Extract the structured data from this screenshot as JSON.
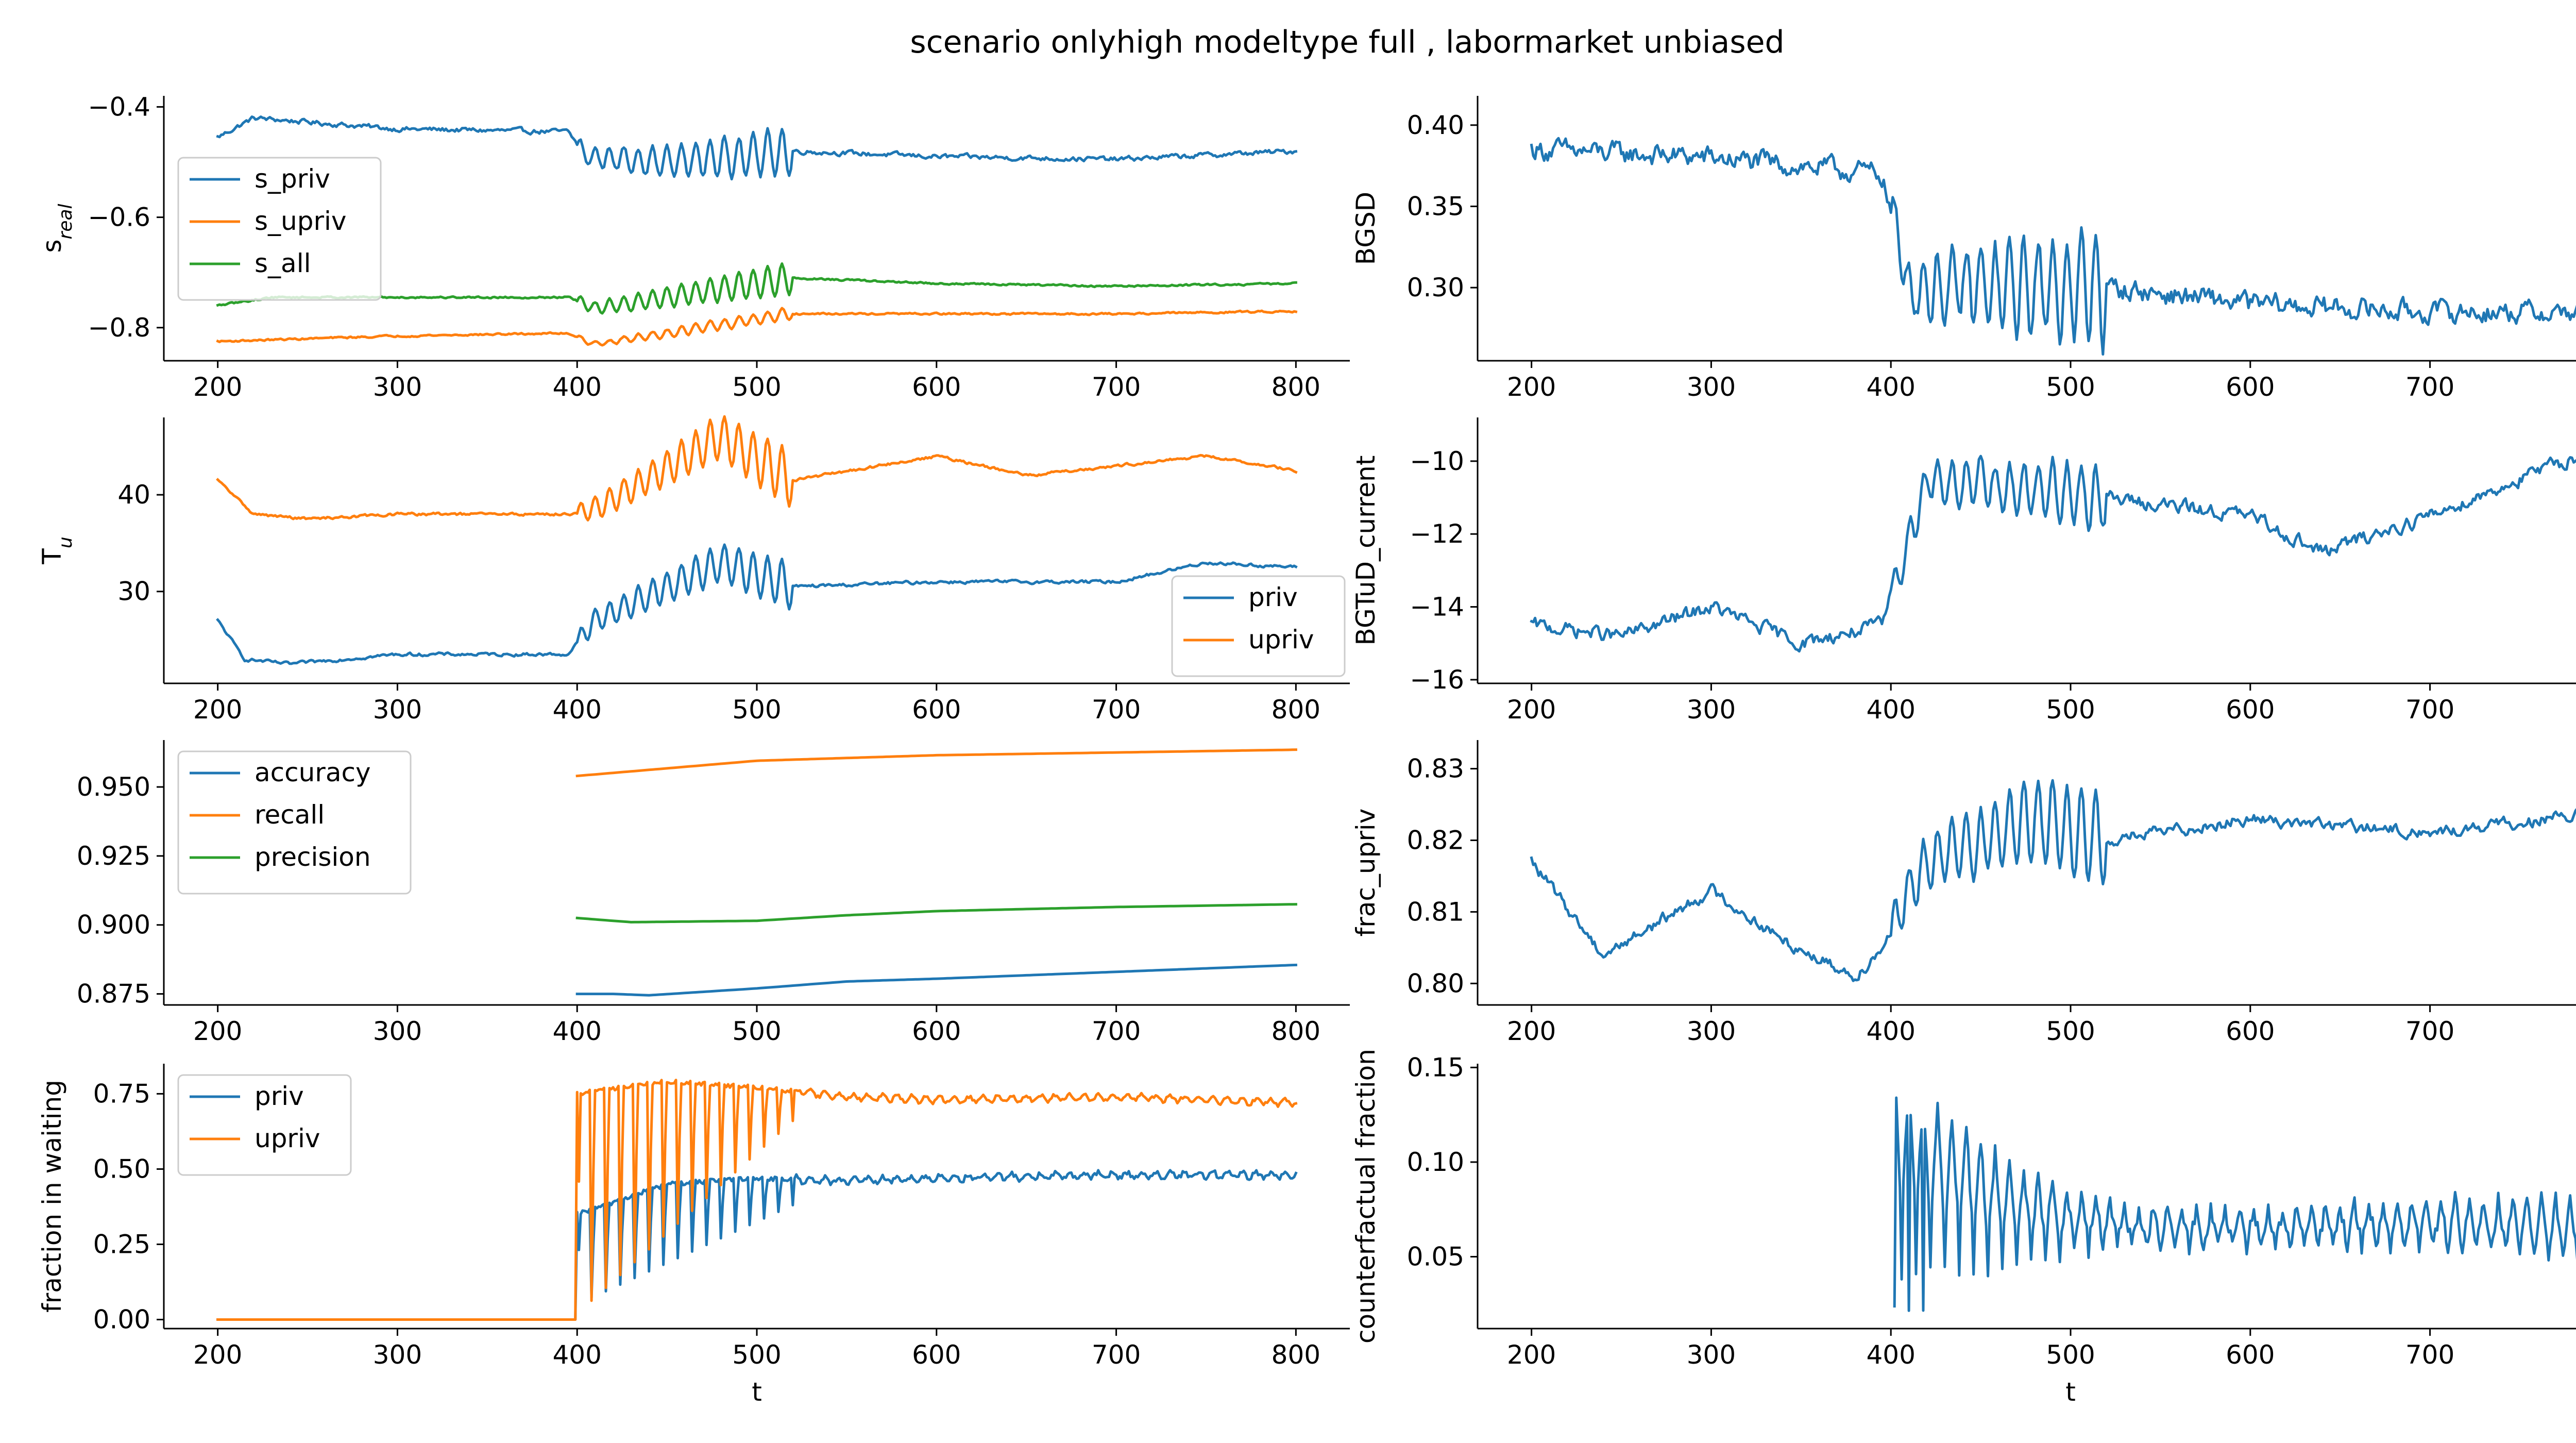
{
  "figure": {
    "title": "scenario onlyhigh modeltype full , labormarket unbiased",
    "colors": {
      "blue": "#1f77b4",
      "orange": "#ff7f0e",
      "green": "#2ca02c"
    }
  },
  "chart_data": [
    {
      "id": "s_real",
      "type": "line",
      "ylabel": "s",
      "ylabel_sub": "real",
      "xlabel": "",
      "xlim": [
        170,
        830
      ],
      "ylim": [
        -0.86,
        -0.38
      ],
      "xticks": [
        200,
        300,
        400,
        500,
        600,
        700,
        800
      ],
      "yticks": [
        -0.8,
        -0.6,
        -0.4
      ],
      "ytick_labels": [
        "−0.8",
        "−0.6",
        "−0.4"
      ],
      "legend": {
        "position": "center-left",
        "entries": [
          "s_priv",
          "s_upriv",
          "s_all"
        ]
      },
      "series": [
        {
          "name": "s_priv",
          "color": "blue",
          "style": "noisy",
          "amp": 0.008,
          "osc_start": 400,
          "osc_end": 520,
          "osc_amp": [
            0.015,
            0.045
          ],
          "x": [
            200,
            220,
            300,
            395,
            405,
            450,
            520,
            600,
            700,
            800
          ],
          "y": [
            -0.455,
            -0.42,
            -0.44,
            -0.445,
            -0.49,
            -0.5,
            -0.48,
            -0.49,
            -0.495,
            -0.48
          ]
        },
        {
          "name": "s_upriv",
          "color": "orange",
          "style": "noisy",
          "amp": 0.003,
          "osc_start": 400,
          "osc_end": 520,
          "osc_amp": [
            0.004,
            0.012
          ],
          "x": [
            200,
            300,
            395,
            410,
            520,
            600,
            700,
            800
          ],
          "y": [
            -0.825,
            -0.815,
            -0.81,
            -0.83,
            -0.775,
            -0.775,
            -0.775,
            -0.77
          ]
        },
        {
          "name": "s_all",
          "color": "green",
          "style": "noisy",
          "amp": 0.003,
          "osc_start": 400,
          "osc_end": 520,
          "osc_amp": [
            0.01,
            0.03
          ],
          "x": [
            200,
            230,
            395,
            410,
            520,
            600,
            700,
            800
          ],
          "y": [
            -0.76,
            -0.745,
            -0.745,
            -0.765,
            -0.71,
            -0.72,
            -0.725,
            -0.72
          ]
        }
      ]
    },
    {
      "id": "bgsd",
      "type": "line",
      "ylabel": "BGSD",
      "xlabel": "",
      "xlim": [
        170,
        830
      ],
      "ylim": [
        0.255,
        0.418
      ],
      "xticks": [
        200,
        300,
        400,
        500,
        600,
        700,
        800
      ],
      "yticks": [
        0.3,
        0.35,
        0.4
      ],
      "ytick_labels": [
        "0.30",
        "0.35",
        "0.40"
      ],
      "series": [
        {
          "name": "BGSD",
          "color": "blue",
          "style": "noisy",
          "amp": 0.012,
          "osc_start": 400,
          "osc_end": 520,
          "osc_amp": [
            0.015,
            0.035
          ],
          "x": [
            200,
            300,
            395,
            410,
            520,
            600,
            700,
            800
          ],
          "y": [
            0.385,
            0.38,
            0.37,
            0.3,
            0.3,
            0.29,
            0.285,
            0.285
          ]
        }
      ]
    },
    {
      "id": "t_u",
      "type": "line",
      "ylabel": "T",
      "ylabel_sub": "u",
      "xlabel": "",
      "xlim": [
        170,
        830
      ],
      "ylim": [
        20.5,
        48
      ],
      "xticks": [
        200,
        300,
        400,
        500,
        600,
        700,
        800
      ],
      "yticks": [
        30,
        40
      ],
      "ytick_labels": [
        "30",
        "40"
      ],
      "legend": {
        "position": "bottom-right",
        "entries": [
          "priv",
          "upriv"
        ]
      },
      "series": [
        {
          "name": "priv",
          "color": "blue",
          "style": "noisy",
          "amp": 0.3,
          "osc_start": 400,
          "osc_end": 520,
          "osc_amp": [
            1.0,
            2.5
          ],
          "x": [
            200,
            215,
            240,
            300,
            395,
            410,
            480,
            520,
            600,
            700,
            750,
            800
          ],
          "y": [
            27,
            23,
            22.5,
            23.5,
            23.5,
            27,
            33,
            30.5,
            31,
            31,
            33,
            32.5
          ]
        },
        {
          "name": "upriv",
          "color": "orange",
          "style": "noisy",
          "amp": 0.25,
          "osc_start": 400,
          "osc_end": 520,
          "osc_amp": [
            1.0,
            3.0
          ],
          "x": [
            200,
            220,
            250,
            300,
            395,
            410,
            480,
            520,
            600,
            650,
            750,
            800
          ],
          "y": [
            41.5,
            38,
            37.5,
            38,
            38,
            38.5,
            46,
            41.5,
            44,
            42,
            44,
            42.5
          ]
        }
      ]
    },
    {
      "id": "bgtud",
      "type": "line",
      "ylabel": "BGTuD_current",
      "xlabel": "",
      "xlim": [
        170,
        830
      ],
      "ylim": [
        -16.1,
        -8.8
      ],
      "xticks": [
        200,
        300,
        400,
        500,
        600,
        700,
        800
      ],
      "yticks": [
        -16,
        -14,
        -12,
        -10
      ],
      "ytick_labels": [
        "−16",
        "−14",
        "−12",
        "−10"
      ],
      "series": [
        {
          "name": "BGTuD_current",
          "color": "blue",
          "style": "noisy",
          "amp": 0.35,
          "osc_start": 400,
          "osc_end": 520,
          "osc_amp": [
            0.4,
            0.9
          ],
          "x": [
            200,
            250,
            300,
            350,
            395,
            420,
            520,
            600,
            640,
            700,
            750,
            800
          ],
          "y": [
            -14.5,
            -14.8,
            -14,
            -15,
            -14.5,
            -10.5,
            -11,
            -11.5,
            -12.5,
            -11.5,
            -10.5,
            -9.5
          ]
        }
      ]
    },
    {
      "id": "metrics",
      "type": "line",
      "ylabel": "",
      "xlabel": "",
      "xlim": [
        170,
        830
      ],
      "ylim": [
        0.871,
        0.967
      ],
      "xticks": [
        200,
        300,
        400,
        500,
        600,
        700,
        800
      ],
      "yticks": [
        0.875,
        0.9,
        0.925,
        0.95
      ],
      "ytick_labels": [
        "0.875",
        "0.900",
        "0.925",
        "0.950"
      ],
      "legend": {
        "position": "top-left",
        "entries": [
          "accuracy",
          "recall",
          "precision"
        ]
      },
      "series": [
        {
          "name": "accuracy",
          "color": "blue",
          "style": "smooth",
          "x": [
            400,
            420,
            440,
            500,
            550,
            600,
            700,
            800
          ],
          "y": [
            0.875,
            0.875,
            0.8745,
            0.877,
            0.8795,
            0.8805,
            0.883,
            0.8855
          ]
        },
        {
          "name": "recall",
          "color": "orange",
          "style": "smooth",
          "x": [
            400,
            500,
            600,
            700,
            800
          ],
          "y": [
            0.954,
            0.9595,
            0.9615,
            0.9625,
            0.9635
          ]
        },
        {
          "name": "precision",
          "color": "green",
          "style": "smooth",
          "x": [
            400,
            430,
            500,
            550,
            600,
            700,
            800
          ],
          "y": [
            0.9025,
            0.901,
            0.9015,
            0.9035,
            0.905,
            0.9065,
            0.9075
          ]
        }
      ]
    },
    {
      "id": "frac_upriv",
      "type": "line",
      "ylabel": "frac_upriv",
      "xlabel": "",
      "xlim": [
        170,
        830
      ],
      "ylim": [
        0.797,
        0.834
      ],
      "xticks": [
        200,
        300,
        400,
        500,
        600,
        700,
        800
      ],
      "yticks": [
        0.8,
        0.81,
        0.82,
        0.83
      ],
      "ytick_labels": [
        "0.80",
        "0.81",
        "0.82",
        "0.83"
      ],
      "series": [
        {
          "name": "frac_upriv",
          "color": "blue",
          "style": "noisy",
          "amp": 0.0015,
          "osc_start": 400,
          "osc_end": 520,
          "osc_amp": [
            0.003,
            0.007
          ],
          "x": [
            200,
            240,
            300,
            340,
            380,
            395,
            420,
            480,
            520,
            600,
            700,
            800
          ],
          "y": [
            0.817,
            0.804,
            0.813,
            0.806,
            0.801,
            0.805,
            0.817,
            0.823,
            0.82,
            0.823,
            0.821,
            0.824
          ]
        }
      ]
    },
    {
      "id": "waiting",
      "type": "line",
      "ylabel": "fraction in waiting",
      "xlabel": "t",
      "xlim": [
        170,
        830
      ],
      "ylim": [
        -0.03,
        0.85
      ],
      "xticks": [
        200,
        300,
        400,
        500,
        600,
        700,
        800
      ],
      "yticks": [
        0,
        0.25,
        0.5,
        0.75
      ],
      "ytick_labels": [
        "0.00",
        "0.25",
        "0.50",
        "0.75"
      ],
      "legend": {
        "position": "top-left",
        "entries": [
          "priv",
          "upriv"
        ]
      },
      "series": [
        {
          "name": "priv",
          "color": "blue",
          "style": "spikes",
          "amp": 0.008,
          "drop_to": [
            0.05,
            0.38
          ],
          "x": [
            200,
            398,
            400,
            450,
            500,
            550,
            600,
            700,
            800
          ],
          "y": [
            0,
            0,
            0.35,
            0.45,
            0.47,
            0.46,
            0.47,
            0.48,
            0.48
          ]
        },
        {
          "name": "upriv",
          "color": "orange",
          "style": "spikes",
          "amp": 0.006,
          "drop_to": [
            0.02,
            0.66
          ],
          "x": [
            200,
            398,
            400,
            450,
            500,
            550,
            600,
            700,
            800
          ],
          "y": [
            0,
            0,
            0.75,
            0.79,
            0.77,
            0.74,
            0.73,
            0.74,
            0.72
          ]
        }
      ]
    },
    {
      "id": "counterfactual",
      "type": "line",
      "ylabel": "counterfactual fraction",
      "xlabel": "t",
      "xlim": [
        170,
        830
      ],
      "ylim": [
        0.012,
        0.152
      ],
      "xticks": [
        200,
        300,
        400,
        500,
        600,
        700,
        800
      ],
      "yticks": [
        0.05,
        0.1,
        0.15
      ],
      "ytick_labels": [
        "0.05",
        "0.10",
        "0.15"
      ],
      "series": [
        {
          "name": "counterfactual fraction",
          "color": "blue",
          "style": "sawtooth",
          "amp": 0.004,
          "x": [
            402,
            420,
            460,
            500,
            550,
            600,
            700,
            800
          ],
          "y": [
            0.11,
            0.1,
            0.08,
            0.07,
            0.065,
            0.065,
            0.068,
            0.065
          ],
          "amp_envelope": [
            0.045,
            0.035,
            0.025,
            0.012,
            0.01,
            0.01,
            0.013,
            0.015
          ]
        }
      ]
    }
  ]
}
